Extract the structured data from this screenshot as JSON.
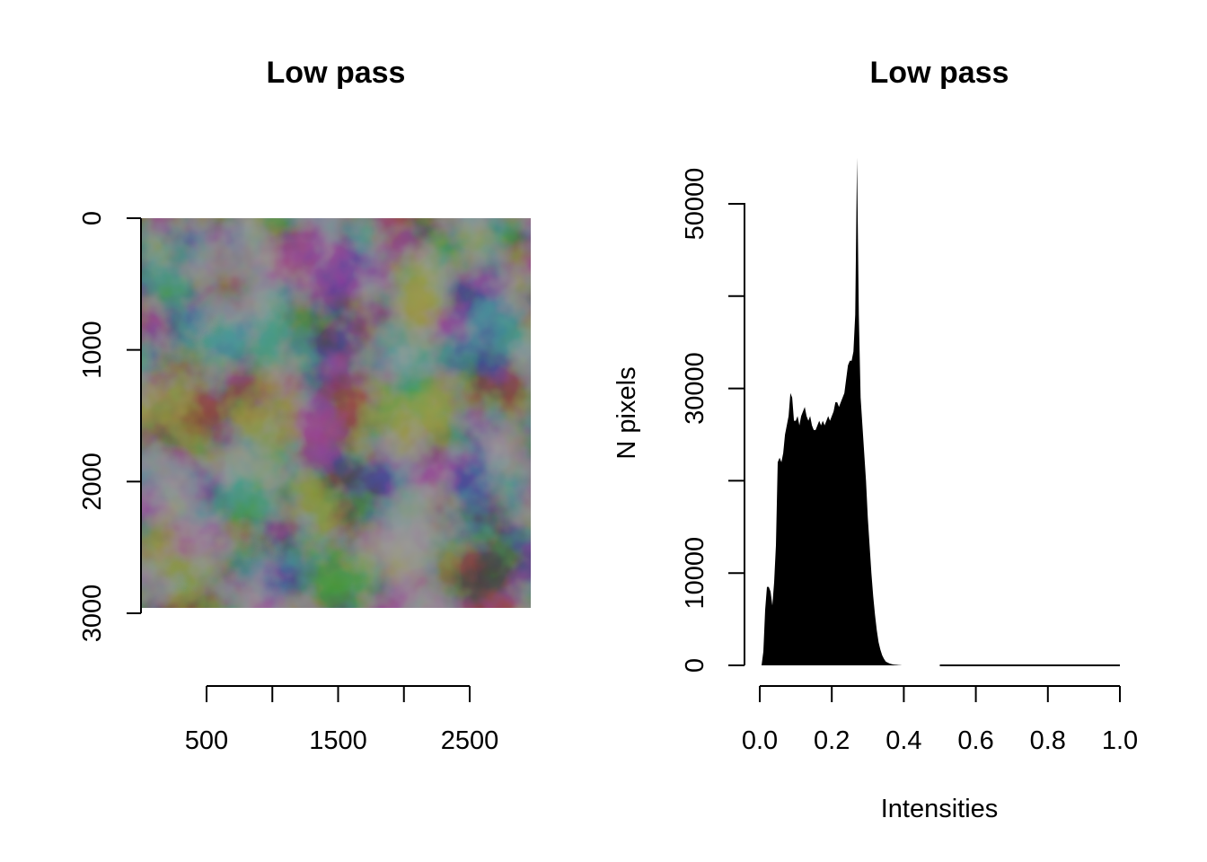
{
  "chart_data": [
    {
      "type": "heatmap",
      "title": "Low pass",
      "x_ticks": [
        500,
        1000,
        1500,
        2000,
        2500
      ],
      "x_tick_labels": [
        "500",
        "1500",
        "2500"
      ],
      "y_ticks": [
        0,
        1000,
        2000,
        3000
      ],
      "y_tick_labels": [
        "0",
        "1000",
        "2000",
        "3000"
      ],
      "xlim": [
        0,
        3000
      ],
      "ylim": [
        3000,
        0
      ],
      "y_reversed": true,
      "colormap": "grayscale",
      "description_colors": {
        "dark": "#0e0e0e",
        "mid": "#3a3a3a",
        "bright": "#6a6a6a"
      }
    },
    {
      "type": "histogram",
      "title": "Low pass",
      "xlabel": "Intensities",
      "ylabel": "N pixels",
      "xlim": [
        0,
        1
      ],
      "ylim": [
        0,
        55000
      ],
      "x_ticks": [
        "0.0",
        "0.2",
        "0.4",
        "0.6",
        "0.8",
        "1.0"
      ],
      "y_ticks": [
        0,
        10000,
        20000,
        30000,
        40000,
        50000
      ],
      "y_tick_labels": [
        "0",
        "10000",
        "",
        "30000",
        "",
        "50000"
      ],
      "bar_color": "#000000",
      "x": [
        0.0,
        0.005,
        0.01,
        0.015,
        0.02,
        0.025,
        0.03,
        0.035,
        0.04,
        0.045,
        0.05,
        0.055,
        0.06,
        0.065,
        0.07,
        0.075,
        0.08,
        0.085,
        0.09,
        0.095,
        0.1,
        0.105,
        0.11,
        0.115,
        0.12,
        0.125,
        0.13,
        0.135,
        0.14,
        0.145,
        0.15,
        0.155,
        0.16,
        0.165,
        0.17,
        0.175,
        0.18,
        0.185,
        0.19,
        0.195,
        0.2,
        0.205,
        0.21,
        0.215,
        0.22,
        0.225,
        0.23,
        0.235,
        0.24,
        0.245,
        0.25,
        0.255,
        0.26,
        0.265,
        0.27,
        0.275,
        0.28,
        0.285,
        0.29,
        0.295,
        0.3,
        0.305,
        0.31,
        0.315,
        0.32,
        0.325,
        0.33,
        0.335,
        0.34,
        0.345,
        0.35,
        0.355,
        0.36,
        0.365,
        0.37,
        0.375,
        0.38,
        0.385,
        0.39,
        0.395,
        0.4,
        0.41,
        0.42,
        0.43,
        0.44,
        0.45,
        0.47,
        0.5,
        0.55,
        0.6,
        0.7,
        0.8,
        0.9,
        1.0
      ],
      "y": [
        0,
        0,
        1500,
        6000,
        8500,
        8500,
        8000,
        6500,
        9000,
        13000,
        22000,
        22500,
        22000,
        23000,
        25000,
        26000,
        27000,
        29500,
        29000,
        26500,
        26500,
        27000,
        26000,
        27000,
        27500,
        28000,
        27000,
        26500,
        27000,
        26000,
        25500,
        25500,
        26000,
        26500,
        26000,
        26500,
        26000,
        26500,
        27000,
        26500,
        27000,
        27500,
        28500,
        28500,
        28000,
        28500,
        29000,
        29500,
        31000,
        32500,
        33000,
        33000,
        34000,
        38000,
        55000,
        38000,
        29000,
        26000,
        23000,
        20000,
        16000,
        13000,
        10000,
        7500,
        5500,
        3800,
        2500,
        1700,
        1100,
        700,
        400,
        300,
        200,
        150,
        100,
        80,
        60,
        40,
        20,
        0,
        0,
        0,
        0,
        0,
        0,
        0,
        0,
        0,
        0,
        0,
        0,
        0,
        0,
        0
      ]
    }
  ]
}
